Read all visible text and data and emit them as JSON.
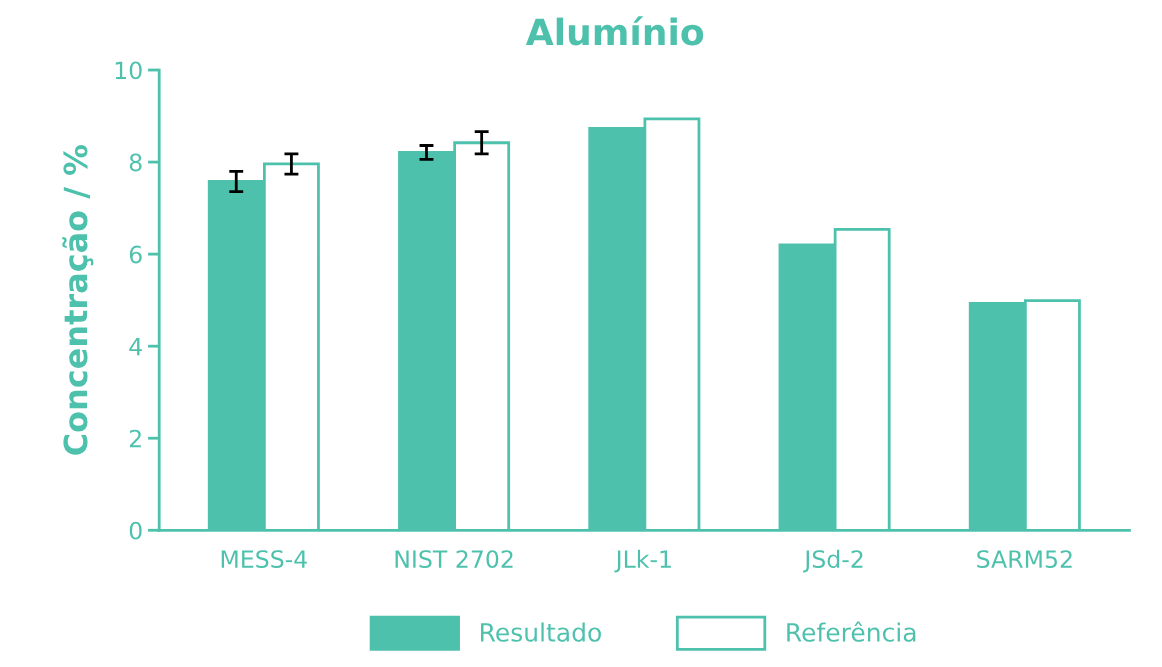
{
  "chart_data": {
    "type": "bar",
    "title": "Alumínio",
    "ylabel": "Concentração / %",
    "categories": [
      "MESS-4",
      "NIST 2702",
      "JLk-1",
      "JSd-2",
      "SARM52"
    ],
    "series": [
      {
        "name": "Resultado",
        "color": "#4ec1ad",
        "values": [
          7.58,
          8.21,
          8.73,
          6.2,
          4.93
        ],
        "errors": [
          0.22,
          0.15,
          null,
          null,
          null
        ]
      },
      {
        "name": "Referência",
        "color": "#ffffff",
        "values": [
          7.96,
          8.42,
          8.94,
          6.54,
          4.99
        ],
        "errors": [
          0.22,
          0.24,
          null,
          null,
          null
        ]
      }
    ],
    "ylim": [
      0,
      10
    ],
    "yticks": [
      0,
      2,
      4,
      6,
      8,
      10
    ],
    "grid": false,
    "legend": "bottom"
  }
}
